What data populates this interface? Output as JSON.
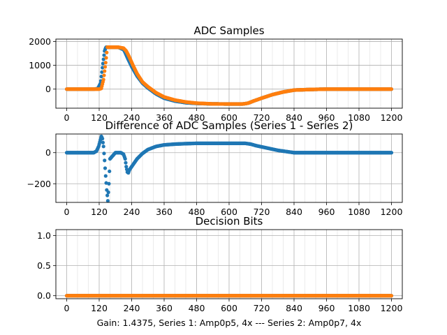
{
  "chart_data": [
    {
      "type": "scatter",
      "title": "ADC Samples",
      "xlim": [
        -40,
        1240
      ],
      "ylim": [
        -800,
        2100
      ],
      "xticks": [
        0,
        120,
        240,
        360,
        480,
        600,
        720,
        840,
        960,
        1080,
        1200
      ],
      "yticks": [
        0,
        1000,
        2000
      ],
      "ytick_labels": [
        "0",
        "1000",
        "2000"
      ],
      "xtick_labels": [
        "0",
        "120",
        "240",
        "360",
        "480",
        "600",
        "720",
        "840",
        "960",
        "1080",
        "1200"
      ],
      "grid": true,
      "series": [
        {
          "name": "Series 1",
          "color": "#1f77b4",
          "x": [
            0,
            100,
            115,
            125,
            132,
            140,
            145,
            190,
            210,
            215,
            225,
            240,
            260,
            280,
            300,
            330,
            360,
            400,
            440,
            480,
            540,
            600,
            650,
            670,
            690,
            720,
            760,
            800,
            840,
            900,
            960,
            1000,
            1100,
            1200
          ],
          "y": [
            0,
            0,
            20,
            250,
            900,
            1600,
            1760,
            1760,
            1660,
            1560,
            1300,
            950,
            550,
            250,
            50,
            -200,
            -380,
            -500,
            -570,
            -600,
            -620,
            -625,
            -625,
            -590,
            -500,
            -380,
            -230,
            -120,
            -40,
            -15,
            0,
            0,
            0,
            0
          ]
        },
        {
          "name": "Series 2",
          "color": "#ff7f0e",
          "x": [
            0,
            100,
            120,
            128,
            136,
            145,
            150,
            190,
            210,
            220,
            230,
            245,
            260,
            280,
            300,
            330,
            360,
            400,
            440,
            480,
            540,
            600,
            650,
            670,
            690,
            720,
            760,
            800,
            840,
            900,
            960,
            1000,
            1100,
            1200
          ],
          "y": [
            0,
            0,
            0,
            30,
            400,
            1200,
            1760,
            1760,
            1720,
            1600,
            1380,
            1000,
            650,
            300,
            100,
            -150,
            -330,
            -460,
            -540,
            -590,
            -620,
            -625,
            -625,
            -590,
            -500,
            -380,
            -230,
            -120,
            -40,
            -15,
            0,
            0,
            0,
            0
          ]
        }
      ]
    },
    {
      "type": "scatter",
      "title": "Difference of ADC Samples (Series 1 - Series 2)",
      "xlim": [
        -40,
        1240
      ],
      "ylim": [
        -320,
        120
      ],
      "xticks": [
        0,
        120,
        240,
        360,
        480,
        600,
        720,
        840,
        960,
        1080,
        1200
      ],
      "yticks": [
        -200,
        0
      ],
      "ytick_labels": [
        "−200",
        "0"
      ],
      "xtick_labels": [
        "0",
        "120",
        "240",
        "360",
        "480",
        "600",
        "720",
        "840",
        "960",
        "1080",
        "1200"
      ],
      "grid": true,
      "series": [
        {
          "name": "Series 1 - Series 2",
          "color": "#1f77b4",
          "x": [
            0,
            100,
            110,
            118,
            124,
            128,
            132,
            136,
            140,
            144,
            148,
            152,
            156,
            160,
            180,
            200,
            210,
            216,
            220,
            224,
            228,
            232,
            240,
            260,
            280,
            300,
            330,
            360,
            400,
            440,
            480,
            540,
            600,
            660,
            680,
            700,
            740,
            780,
            820,
            840,
            900,
            960,
            1000,
            1100,
            1200
          ],
          "y": [
            0,
            0,
            10,
            40,
            80,
            105,
            90,
            40,
            -50,
            -150,
            -240,
            -310,
            -200,
            -40,
            0,
            0,
            -10,
            -40,
            -90,
            -125,
            -130,
            -110,
            -90,
            -40,
            -5,
            20,
            40,
            50,
            55,
            58,
            60,
            60,
            60,
            60,
            55,
            45,
            30,
            15,
            5,
            0,
            0,
            0,
            0,
            0,
            0
          ]
        }
      ]
    },
    {
      "type": "scatter",
      "title": "Decision Bits",
      "xlabel": "Gain: 1.4375, Series 1: Amp0p5, 4x --- Series 2: Amp0p7, 4x",
      "xlim": [
        -40,
        1240
      ],
      "ylim": [
        -0.05,
        1.1
      ],
      "xticks": [
        0,
        120,
        240,
        360,
        480,
        600,
        720,
        840,
        960,
        1080,
        1200
      ],
      "yticks": [
        0,
        0.5,
        1
      ],
      "ytick_labels": [
        "0.0",
        "0.5",
        "1.0"
      ],
      "xtick_labels": [
        "0",
        "120",
        "240",
        "360",
        "480",
        "600",
        "720",
        "840",
        "960",
        "1080",
        "1200"
      ],
      "grid": true,
      "series": [
        {
          "name": "Series 1",
          "color": "#1f77b4",
          "x": [
            0,
            1200
          ],
          "y": [
            0,
            0
          ]
        },
        {
          "name": "Series 2",
          "color": "#ff7f0e",
          "x": [
            0,
            1200
          ],
          "y": [
            0,
            0
          ]
        }
      ]
    }
  ]
}
